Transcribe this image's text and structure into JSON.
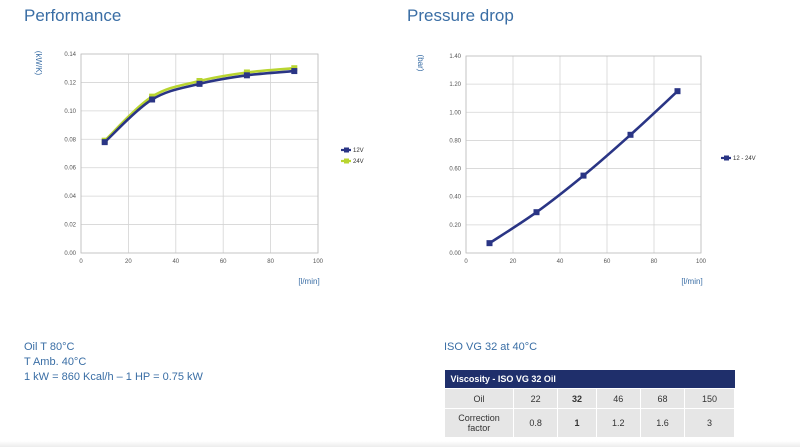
{
  "performance": {
    "title": "Performance"
  },
  "pressure": {
    "title": "Pressure drop"
  },
  "chart_data": [
    {
      "type": "line",
      "title": "Performance",
      "ylabel": "(kW/K)",
      "xlabel": "[l/min]",
      "xlim": [
        0,
        100
      ],
      "ylim": [
        0,
        0.14
      ],
      "x_ticks": [
        "0",
        "20",
        "40",
        "60",
        "80",
        "100"
      ],
      "y_ticks": [
        "0.00",
        "0.02",
        "0.04",
        "0.06",
        "0.08",
        "0.10",
        "0.12",
        "0.14"
      ],
      "legend_position": "right",
      "series": [
        {
          "name": "12V",
          "color": "#2a3585",
          "x": [
            10,
            30,
            50,
            70,
            90
          ],
          "y": [
            0.078,
            0.108,
            0.119,
            0.125,
            0.128
          ]
        },
        {
          "name": "24V",
          "color": "#b9d531",
          "x": [
            10,
            30,
            50,
            70,
            90
          ],
          "y": [
            0.079,
            0.11,
            0.121,
            0.127,
            0.13
          ]
        }
      ]
    },
    {
      "type": "line",
      "title": "Pressure drop",
      "ylabel": "(bar)",
      "xlabel": "[l/min]",
      "xlim": [
        0,
        100
      ],
      "ylim": [
        0,
        1.4
      ],
      "x_ticks": [
        "0",
        "20",
        "40",
        "60",
        "80",
        "100"
      ],
      "y_ticks": [
        "0.00",
        "0.20",
        "0.40",
        "0.60",
        "0.80",
        "1.00",
        "1.20",
        "1.40"
      ],
      "legend_position": "right",
      "series": [
        {
          "name": "12 - 24V",
          "color": "#2a3585",
          "x": [
            10,
            30,
            50,
            70,
            90
          ],
          "y": [
            0.07,
            0.29,
            0.55,
            0.84,
            1.15
          ]
        }
      ]
    }
  ],
  "notes": {
    "line1": "Oil T 80°C",
    "line2": "T Amb. 40°C",
    "line3": "1 kW = 860 Kcal/h – 1 HP = 0.75 kW"
  },
  "viscosity": {
    "title": "ISO VG 32 at 40°C",
    "table_title": "Viscosity - ISO VG 32 Oil",
    "row1_label": "Oil",
    "row2_label": "Correction factor",
    "oil": [
      "22",
      "32",
      "46",
      "68",
      "150"
    ],
    "factor": [
      "0.8",
      "1",
      "1.2",
      "1.6",
      "3"
    ]
  }
}
